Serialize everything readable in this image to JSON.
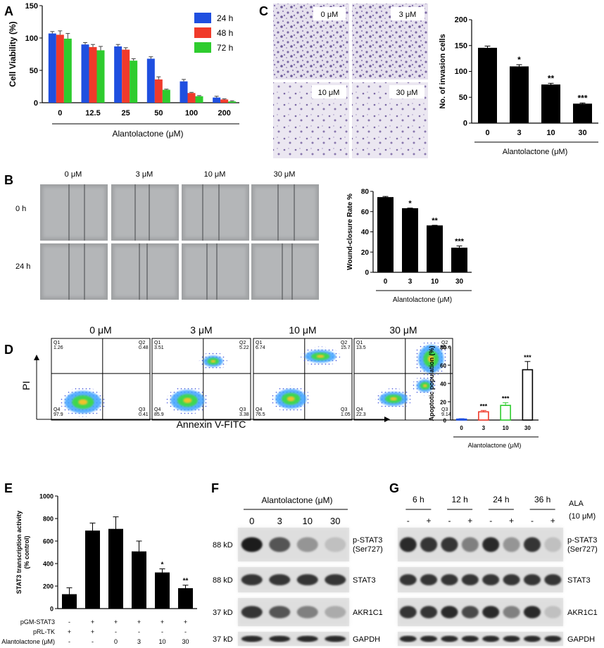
{
  "panel_letters": {
    "A": "A",
    "B": "B",
    "C": "C",
    "D": "D",
    "E": "E",
    "F": "F",
    "G": "G"
  },
  "chart_data": [
    {
      "id": "A",
      "type": "bar",
      "ylabel": "Cell Viability (%)",
      "xlabel": "Alantolactone  (μM)",
      "categories": [
        "0",
        "12.5",
        "25",
        "50",
        "100",
        "200"
      ],
      "ylim": [
        0,
        150
      ],
      "yticks": [
        0,
        50,
        100,
        150
      ],
      "series": [
        {
          "name": "24 h",
          "color": "#1f4fe0",
          "values": [
            107,
            90,
            87,
            68,
            33,
            8
          ],
          "err": [
            3,
            3,
            3,
            3,
            3,
            2
          ]
        },
        {
          "name": "48 h",
          "color": "#f03a2a",
          "values": [
            105,
            86,
            82,
            36,
            15,
            5
          ],
          "err": [
            6,
            4,
            3,
            4,
            1,
            1
          ]
        },
        {
          "name": "72 h",
          "color": "#2ecc2e",
          "values": [
            99,
            81,
            65,
            20,
            10,
            2
          ],
          "err": [
            8,
            6,
            3,
            1,
            1,
            1
          ]
        }
      ]
    },
    {
      "id": "C",
      "type": "bar",
      "ylabel": "No. of invasion cells",
      "xlabel": "Alantolactone (μM)",
      "categories": [
        "0",
        "3",
        "10",
        "30"
      ],
      "values": [
        145,
        109,
        74,
        37
      ],
      "err": [
        4,
        4,
        3,
        2
      ],
      "sig": [
        "",
        "*",
        "**",
        "***"
      ],
      "ylim": [
        0,
        200
      ],
      "yticks": [
        0,
        50,
        100,
        150,
        200
      ]
    },
    {
      "id": "B",
      "type": "bar",
      "ylabel": "Wound-closure Rate %",
      "xlabel": "Alantolactone (μM)",
      "categories": [
        "0",
        "3",
        "10",
        "30"
      ],
      "values": [
        74,
        63,
        46,
        24
      ],
      "err": [
        1,
        0.5,
        0.5,
        2
      ],
      "sig": [
        "",
        "*",
        "**",
        "***"
      ],
      "ylim": [
        0,
        80
      ],
      "yticks": [
        0,
        20,
        40,
        60,
        80
      ]
    },
    {
      "id": "D",
      "type": "bar",
      "ylabel": "Apoptotic population (%)",
      "xlabel": "Alantolactone (μM)",
      "categories": [
        "0",
        "3",
        "10",
        "30"
      ],
      "values": [
        1,
        9,
        16,
        55
      ],
      "err": [
        0.5,
        1.5,
        3,
        9
      ],
      "colors": [
        "#1f4fe0",
        "#f03a2a",
        "#2ecc2e",
        "#000000"
      ],
      "sig": [
        "",
        "***",
        "***",
        "***"
      ],
      "ylim": [
        0,
        80
      ],
      "yticks": [
        0,
        20,
        40,
        60,
        80
      ]
    },
    {
      "id": "E",
      "type": "bar",
      "ylabel": "STAT3 transcription activity (% control)",
      "categories": [
        "1",
        "2",
        "3",
        "4",
        "5",
        "6"
      ],
      "values": [
        125,
        690,
        705,
        505,
        318,
        178
      ],
      "err": [
        60,
        70,
        110,
        95,
        35,
        30
      ],
      "sig": [
        "",
        "",
        "",
        "",
        "*",
        "**"
      ],
      "ylim": [
        0,
        1000
      ],
      "yticks": [
        0,
        200,
        400,
        600,
        800,
        1000
      ]
    }
  ],
  "panel_c": {
    "micro_labels": [
      "0 μM",
      "3 μM",
      "10 μM",
      "30 μM"
    ]
  },
  "panel_b": {
    "columns": [
      "0 μM",
      "3 μM",
      "10 μM",
      "30 μM"
    ],
    "rows": [
      "0 h",
      "24 h"
    ]
  },
  "panel_d": {
    "conditions": [
      "0 μM",
      "3 μM",
      "10 μM",
      "30 μM"
    ],
    "y_axis": "PI",
    "x_axis": "Annexin V-FITC",
    "quadrants": [
      {
        "q1": "Q1\n1.26",
        "q2": "Q2\n0.48",
        "q3": "Q3\n0.41",
        "q4": "Q4\n97.9"
      },
      {
        "q1": "Q1\n3.51",
        "q2": "Q2\n5.22",
        "q3": "Q3\n3.38",
        "q4": "Q4\n85.9"
      },
      {
        "q1": "Q1\n6.74",
        "q2": "Q2\n15.7",
        "q3": "Q3\n1.05",
        "q4": "Q4\n76.5"
      },
      {
        "q1": "Q1\n13.5",
        "q2": "Q2\n55.0",
        "q3": "Q3\n9.14",
        "q4": "Q4\n22.3"
      }
    ]
  },
  "panel_e": {
    "row_labels": [
      "pGM-STAT3",
      "pRL-TK",
      "Alantolactone (μM)"
    ],
    "rows": [
      [
        "-",
        "+",
        "+",
        "+",
        "+",
        "+"
      ],
      [
        "+",
        "+",
        "-",
        "-",
        "-",
        "-"
      ],
      [
        "-",
        "-",
        "0",
        "3",
        "10",
        "30"
      ]
    ]
  },
  "panel_f": {
    "header": "Alantolactone (μM)",
    "lanes": [
      "0",
      "3",
      "10",
      "30"
    ],
    "kd": [
      "88 kD",
      "88 kD",
      "37 kD",
      "37 kD"
    ],
    "proteins": [
      "p-STAT3\n(Ser727)",
      "STAT3",
      "AKR1C1",
      "GAPDH"
    ]
  },
  "panel_g": {
    "times": [
      "6 h",
      "12 h",
      "24 h",
      "36 h"
    ],
    "signs": [
      "-",
      "+",
      "-",
      "+",
      "-",
      "+",
      "-",
      "+"
    ],
    "treatment": "ALA\n(10 μM)",
    "proteins": [
      "p-STAT3\n(Ser727)",
      "STAT3",
      "AKR1C1",
      "GAPDH"
    ]
  }
}
